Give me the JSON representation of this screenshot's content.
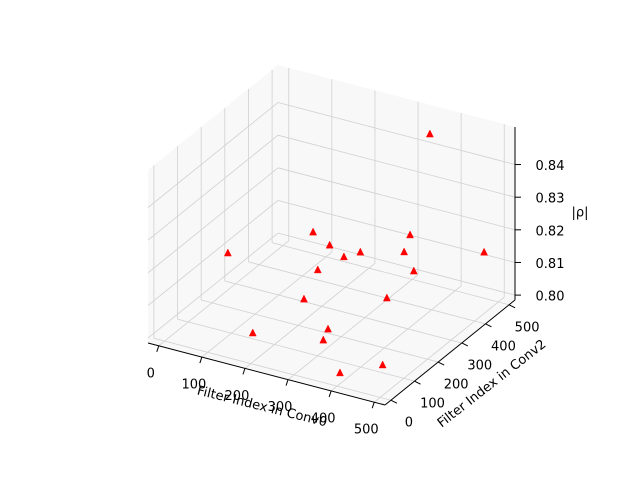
{
  "chart_data": {
    "type": "scatter3d",
    "x_label": "Filter Index in Conv0",
    "y_label": "Filter Index in Conv2",
    "z_label": "|ρ|",
    "xlim": [
      -25,
      525
    ],
    "ylim": [
      -25,
      525
    ],
    "zlim": [
      0.7985,
      0.8515
    ],
    "xticks": [
      0,
      100,
      200,
      300,
      400,
      500
    ],
    "yticks": [
      0,
      100,
      200,
      300,
      400,
      500
    ],
    "zticks": [
      {
        "value": 0.8,
        "label": "0.80"
      },
      0.81,
      0.82,
      0.83,
      0.84
    ],
    "grid": true,
    "series": [
      {
        "color": "#ff0000",
        "x": [
          345,
          176,
          198,
          213,
          267,
          338,
          322,
          484,
          72,
          160,
          345,
          185,
          328,
          183,
          271,
          322,
          387,
          480
        ],
        "y": [
          493,
          307,
          337,
          370,
          341,
          422,
          426,
          469,
          136,
          356,
          425,
          252,
          342,
          39,
          197,
          84,
          36,
          47
        ],
        "z": [
          0.845,
          0.82,
          0.815,
          0.81,
          0.815,
          0.818,
          0.812,
          0.815,
          0.82,
          0.805,
          0.807,
          0.803,
          0.803,
          0.805,
          0.8,
          0.805,
          0.8,
          0.805
        ]
      }
    ]
  }
}
